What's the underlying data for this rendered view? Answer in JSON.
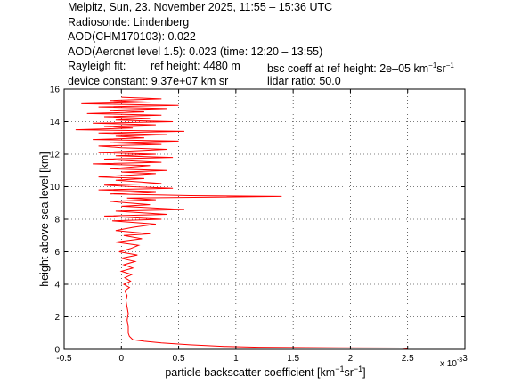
{
  "header": {
    "line1": "Melpitz, Sun, 23. November 2025, 11:55 – 15:36 UTC",
    "line2": "Radiosonde: Lindenberg",
    "line3": "AOD(CHM170103): 0.022",
    "line4": "AOD(Aeronet level 1.5): 0.023   (time: 12:20 – 13:55)",
    "rayleigh_label": "Rayleigh fit:",
    "ref_height": "ref height: 4480 m",
    "bsc_coeff": "bsc coeff at ref height: 2e–05 km",
    "bsc_unit_sup1": "−1",
    "bsc_unit_sr": "sr",
    "bsc_unit_sup2": "−1",
    "device_constant": "device constant: 9.37e+07 km sr",
    "lidar_ratio": "lidar ratio: 50.0"
  },
  "chart_data": {
    "type": "line",
    "xlabel_main": "particle backscatter coefficient [km",
    "xlabel_sup1": "−1",
    "xlabel_sr": "sr",
    "xlabel_sup2": "−1",
    "xlabel_end": "]",
    "ylabel": "height above sea level [km]",
    "x_multiplier": "x 10",
    "x_multiplier_exp": "-3",
    "xlim": [
      -0.5,
      3
    ],
    "ylim": [
      0,
      16
    ],
    "x_ticks": [
      "-0.5",
      "0",
      "0.5",
      "1",
      "1.5",
      "2",
      "2.5",
      "3"
    ],
    "y_ticks": [
      "0",
      "2",
      "4",
      "6",
      "8",
      "10",
      "12",
      "14",
      "16"
    ],
    "grid": true,
    "series": [
      {
        "color": "#ff0000",
        "points": [
          [
            2.5,
            0.05
          ],
          [
            2.45,
            0.08
          ],
          [
            1.9,
            0.1
          ],
          [
            1.2,
            0.13
          ],
          [
            0.9,
            0.18
          ],
          [
            0.6,
            0.28
          ],
          [
            0.35,
            0.4
          ],
          [
            0.2,
            0.5
          ],
          [
            0.1,
            0.6
          ],
          [
            0.07,
            0.8
          ],
          [
            0.06,
            1.0
          ],
          [
            0.06,
            1.4
          ],
          [
            0.05,
            1.8
          ],
          [
            0.06,
            2.2
          ],
          [
            0.05,
            2.6
          ],
          [
            0.04,
            3.0
          ],
          [
            0.05,
            3.3
          ],
          [
            0.03,
            3.6
          ],
          [
            0.07,
            3.8
          ],
          [
            0.02,
            4.0
          ],
          [
            0.08,
            4.2
          ],
          [
            0.03,
            4.4
          ],
          [
            0.09,
            4.6
          ],
          [
            0.0,
            4.8
          ],
          [
            0.1,
            5.0
          ],
          [
            0.02,
            5.2
          ],
          [
            0.12,
            5.4
          ],
          [
            0.0,
            5.6
          ],
          [
            0.14,
            5.8
          ],
          [
            -0.02,
            6.0
          ],
          [
            0.08,
            6.2
          ],
          [
            0.15,
            6.4
          ],
          [
            -0.05,
            6.6
          ],
          [
            0.18,
            6.8
          ],
          [
            0.02,
            7.0
          ],
          [
            0.25,
            7.1
          ],
          [
            -0.05,
            7.3
          ],
          [
            0.1,
            7.5
          ],
          [
            0.3,
            7.7
          ],
          [
            -0.08,
            7.9
          ],
          [
            0.35,
            8.0
          ],
          [
            -0.15,
            8.2
          ],
          [
            0.4,
            8.3
          ],
          [
            -0.05,
            8.5
          ],
          [
            0.55,
            8.6
          ],
          [
            0.0,
            8.8
          ],
          [
            0.25,
            8.9
          ],
          [
            -0.1,
            9.1
          ],
          [
            0.3,
            9.2
          ],
          [
            0.05,
            9.3
          ],
          [
            1.4,
            9.4
          ],
          [
            0.6,
            9.45
          ],
          [
            -0.1,
            9.55
          ],
          [
            0.3,
            9.7
          ],
          [
            -0.2,
            9.8
          ],
          [
            0.45,
            9.9
          ],
          [
            0.1,
            10.0
          ],
          [
            -0.15,
            10.1
          ],
          [
            0.35,
            10.2
          ],
          [
            -0.05,
            10.4
          ],
          [
            0.2,
            10.5
          ],
          [
            -0.2,
            10.6
          ],
          [
            0.3,
            10.8
          ],
          [
            0.0,
            10.9
          ],
          [
            0.4,
            11.0
          ],
          [
            -0.1,
            11.1
          ],
          [
            0.25,
            11.3
          ],
          [
            -0.25,
            11.4
          ],
          [
            0.35,
            11.5
          ],
          [
            0.05,
            11.6
          ],
          [
            -0.15,
            11.7
          ],
          [
            0.45,
            11.8
          ],
          [
            -0.05,
            11.9
          ],
          [
            0.3,
            12.0
          ],
          [
            -0.2,
            12.1
          ],
          [
            0.4,
            12.3
          ],
          [
            0.0,
            12.4
          ],
          [
            -0.2,
            12.5
          ],
          [
            0.35,
            12.6
          ],
          [
            -0.1,
            12.7
          ],
          [
            0.5,
            12.8
          ],
          [
            -0.25,
            12.9
          ],
          [
            0.2,
            13.0
          ],
          [
            -0.05,
            13.1
          ],
          [
            0.4,
            13.2
          ],
          [
            -0.2,
            13.3
          ],
          [
            0.55,
            13.4
          ],
          [
            -0.4,
            13.5
          ],
          [
            0.1,
            13.6
          ],
          [
            -0.15,
            13.7
          ],
          [
            0.3,
            13.8
          ],
          [
            -0.25,
            13.9
          ],
          [
            0.45,
            14.0
          ],
          [
            -0.05,
            14.1
          ],
          [
            0.25,
            14.2
          ],
          [
            -0.15,
            14.3
          ],
          [
            0.35,
            14.4
          ],
          [
            -0.3,
            14.5
          ],
          [
            0.2,
            14.6
          ],
          [
            -0.1,
            14.7
          ],
          [
            0.4,
            14.8
          ],
          [
            -0.2,
            14.9
          ],
          [
            0.5,
            15.0
          ],
          [
            -0.35,
            15.1
          ],
          [
            0.25,
            15.2
          ],
          [
            -0.1,
            15.3
          ],
          [
            0.35,
            15.4
          ],
          [
            0.0,
            15.5
          ]
        ]
      }
    ]
  }
}
